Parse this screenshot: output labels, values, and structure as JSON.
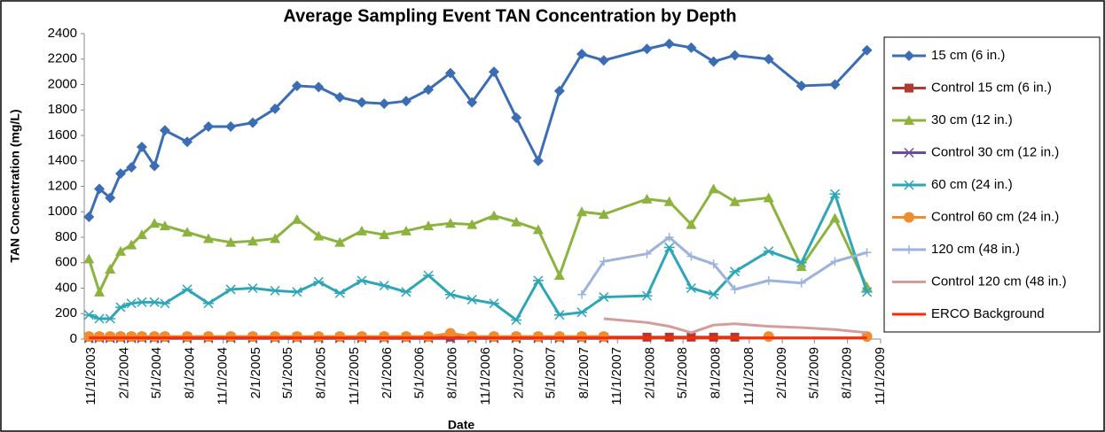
{
  "chart_data": {
    "type": "line",
    "title": "Average Sampling Event TAN Concentration by Depth",
    "xlabel": "Date",
    "ylabel": "TAN Concentration (mg/L)",
    "x": [
      "2003-10-25",
      "2003-11-23",
      "2003-12-23",
      "2004-01-21",
      "2004-02-20",
      "2004-03-20",
      "2004-04-24",
      "2004-05-23",
      "2004-07-24",
      "2004-09-21",
      "2004-11-22",
      "2005-01-22",
      "2005-03-25",
      "2005-05-25",
      "2005-07-24",
      "2005-09-21",
      "2005-11-21",
      "2006-01-22",
      "2006-03-24",
      "2006-05-25",
      "2006-07-25",
      "2006-09-23",
      "2006-11-23",
      "2007-01-24",
      "2007-03-26",
      "2007-05-24",
      "2007-07-25",
      "2007-09-24",
      "2008-01-22",
      "2008-03-24",
      "2008-05-24",
      "2008-07-25",
      "2008-09-22",
      "2008-12-25",
      "2009-03-26",
      "2009-06-27",
      "2009-09-24"
    ],
    "series": [
      {
        "name": "15 cm (6 in.)",
        "color": "#3b6db5",
        "marker": "diamond",
        "values": [
          960,
          1180,
          1110,
          1300,
          1350,
          1510,
          1360,
          1640,
          1550,
          1670,
          1670,
          1700,
          1810,
          1990,
          1980,
          1900,
          1860,
          1850,
          1870,
          1960,
          2090,
          1860,
          2100,
          1740,
          1400,
          1950,
          2240,
          2190,
          2280,
          2320,
          2290,
          2180,
          2230,
          2200,
          1990,
          2000,
          2270
        ]
      },
      {
        "name": "Control 15 cm (6 in.)",
        "color": "#b03a2e",
        "marker": "square",
        "values": [
          15,
          15,
          15,
          15,
          15,
          15,
          15,
          15,
          15,
          15,
          15,
          15,
          15,
          15,
          15,
          15,
          15,
          15,
          15,
          15,
          15,
          15,
          15,
          15,
          15,
          15,
          15,
          15,
          15,
          15,
          15,
          15,
          15,
          null,
          null,
          null,
          null
        ]
      },
      {
        "name": "30 cm (12 in.)",
        "color": "#8cb33d",
        "marker": "triangle",
        "values": [
          630,
          370,
          550,
          690,
          740,
          820,
          910,
          890,
          840,
          790,
          760,
          770,
          790,
          940,
          810,
          760,
          850,
          820,
          850,
          890,
          910,
          900,
          970,
          920,
          860,
          500,
          1000,
          980,
          1100,
          1080,
          900,
          1180,
          1080,
          1110,
          570,
          950,
          410
        ]
      },
      {
        "name": "Control 30 cm (12 in.)",
        "color": "#6b4a9b",
        "marker": "x",
        "values": [
          5,
          5,
          5,
          5,
          5,
          5,
          5,
          5,
          5,
          5,
          5,
          5,
          5,
          5,
          5,
          5,
          5,
          5,
          5,
          5,
          5,
          5,
          5,
          5,
          5,
          5,
          5,
          5,
          null,
          null,
          null,
          null,
          null,
          null,
          null,
          null,
          null
        ]
      },
      {
        "name": "60 cm (24 in.)",
        "color": "#2ea6b8",
        "marker": "asterisk",
        "values": [
          190,
          160,
          160,
          250,
          280,
          290,
          290,
          280,
          390,
          280,
          390,
          400,
          380,
          370,
          450,
          360,
          460,
          420,
          370,
          500,
          350,
          310,
          280,
          150,
          460,
          190,
          210,
          330,
          340,
          720,
          400,
          350,
          530,
          690,
          600,
          1140,
          370
        ]
      },
      {
        "name": "Control 60 cm (24 in.)",
        "color": "#f08c2e",
        "marker": "circle",
        "values": [
          20,
          20,
          20,
          20,
          20,
          20,
          20,
          20,
          20,
          20,
          20,
          20,
          20,
          20,
          20,
          20,
          20,
          20,
          20,
          20,
          45,
          20,
          20,
          20,
          20,
          20,
          20,
          20,
          null,
          null,
          null,
          null,
          null,
          20,
          null,
          null,
          20
        ]
      },
      {
        "name": "120 cm (48 in.)",
        "color": "#9db3dc",
        "marker": "plus",
        "values": [
          null,
          null,
          null,
          null,
          null,
          null,
          null,
          null,
          null,
          null,
          null,
          null,
          null,
          null,
          null,
          null,
          null,
          null,
          null,
          null,
          null,
          null,
          null,
          null,
          null,
          null,
          350,
          610,
          670,
          800,
          650,
          590,
          390,
          460,
          440,
          610,
          680
        ]
      },
      {
        "name": "Control 120 cm (48 in.)",
        "color": "#d59c9c",
        "marker": "none",
        "values": [
          null,
          null,
          null,
          null,
          null,
          null,
          null,
          null,
          null,
          null,
          null,
          null,
          null,
          null,
          null,
          null,
          null,
          null,
          null,
          null,
          null,
          null,
          null,
          null,
          null,
          null,
          null,
          160,
          130,
          100,
          50,
          110,
          120,
          100,
          90,
          75,
          50
        ]
      },
      {
        "name": "ERCO Background",
        "color": "#ff2a00",
        "marker": "none",
        "values": [
          10,
          10,
          10,
          10,
          10,
          10,
          10,
          10,
          10,
          10,
          10,
          10,
          10,
          10,
          10,
          10,
          10,
          10,
          10,
          10,
          10,
          10,
          10,
          10,
          10,
          10,
          10,
          10,
          10,
          10,
          10,
          10,
          10,
          10,
          10,
          10,
          10
        ]
      }
    ],
    "xlim": [
      "2003-10-12",
      "2009-11-01"
    ],
    "xticks": [
      {
        "value": "2003-11-01",
        "label": "11/1/2003"
      },
      {
        "value": "2004-02-01",
        "label": "2/1/2004"
      },
      {
        "value": "2004-05-01",
        "label": "5/1/2004"
      },
      {
        "value": "2004-08-01",
        "label": "8/1/2004"
      },
      {
        "value": "2004-11-01",
        "label": "11/1/2004"
      },
      {
        "value": "2005-02-01",
        "label": "2/1/2005"
      },
      {
        "value": "2005-05-01",
        "label": "5/1/2005"
      },
      {
        "value": "2005-08-01",
        "label": "8/1/2005"
      },
      {
        "value": "2005-11-01",
        "label": "11/1/2005"
      },
      {
        "value": "2006-02-01",
        "label": "2/1/2006"
      },
      {
        "value": "2006-05-01",
        "label": "5/1/2006"
      },
      {
        "value": "2006-08-01",
        "label": "8/1/2006"
      },
      {
        "value": "2006-11-01",
        "label": "11/1/2006"
      },
      {
        "value": "2007-02-01",
        "label": "2/1/2007"
      },
      {
        "value": "2007-05-01",
        "label": "5/1/2007"
      },
      {
        "value": "2007-08-01",
        "label": "8/1/2007"
      },
      {
        "value": "2007-11-01",
        "label": "11/1/2007"
      },
      {
        "value": "2008-02-01",
        "label": "2/1/2008"
      },
      {
        "value": "2008-05-01",
        "label": "5/1/2008"
      },
      {
        "value": "2008-08-01",
        "label": "8/1/2008"
      },
      {
        "value": "2008-11-01",
        "label": "11/1/2008"
      },
      {
        "value": "2009-02-01",
        "label": "2/1/2009"
      },
      {
        "value": "2009-05-01",
        "label": "5/1/2009"
      },
      {
        "value": "2009-08-01",
        "label": "8/1/2009"
      },
      {
        "value": "2009-11-01",
        "label": "11/1/2009"
      }
    ],
    "ylim": [
      0,
      2400
    ],
    "yticks": [
      0,
      200,
      400,
      600,
      800,
      1000,
      1200,
      1400,
      1600,
      1800,
      2000,
      2200,
      2400
    ],
    "grid": false,
    "legend": "right"
  }
}
